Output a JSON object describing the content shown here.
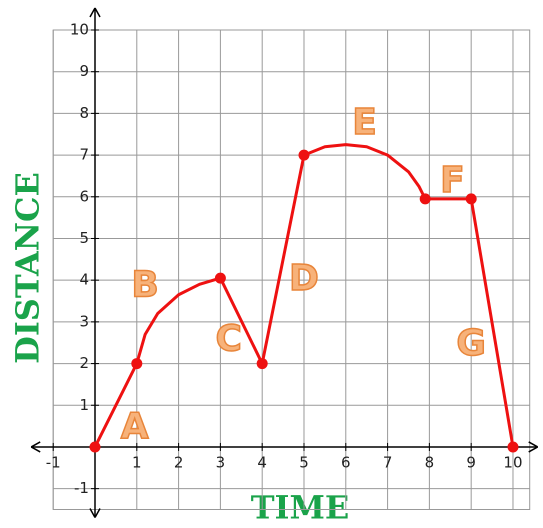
{
  "chart_data": {
    "type": "line",
    "x_label": "TIME",
    "y_label": "DISTANCE",
    "xlim": [
      -1,
      10.4
    ],
    "ylim": [
      -1.5,
      10
    ],
    "xticks": [
      -1,
      1,
      2,
      3,
      4,
      5,
      6,
      7,
      8,
      9,
      10
    ],
    "yticks": [
      -1,
      1,
      2,
      3,
      4,
      5,
      6,
      7,
      8,
      9,
      10
    ],
    "grid": true,
    "x": [
      0,
      1,
      1.2,
      1.5,
      2,
      2.5,
      3,
      4,
      5,
      5.5,
      6,
      6.5,
      7,
      7.5,
      7.75,
      7.9,
      9,
      10
    ],
    "series": [
      {
        "color": "#ee1111",
        "values": [
          0,
          2,
          2.7,
          3.2,
          3.65,
          3.9,
          4.05,
          2,
          7,
          7.2,
          7.25,
          7.2,
          7.0,
          6.6,
          6.25,
          5.95,
          5.95,
          0
        ]
      }
    ],
    "points": {
      "color": "#ee1111",
      "x": [
        0,
        1,
        3,
        4,
        5,
        7.9,
        9,
        10
      ],
      "y": [
        0,
        2,
        4.05,
        2,
        7,
        5.95,
        5.95,
        0
      ]
    },
    "annotations": [
      {
        "text": "A",
        "x": 0.95,
        "y": 0.45
      },
      {
        "text": "B",
        "x": 1.2,
        "y": 3.85
      },
      {
        "text": "C",
        "x": 3.2,
        "y": 2.55
      },
      {
        "text": "D",
        "x": 5,
        "y": 4
      },
      {
        "text": "E",
        "x": 6.45,
        "y": 7.75
      },
      {
        "text": "F",
        "x": 8.55,
        "y": 6.35
      },
      {
        "text": "G",
        "x": 9,
        "y": 2.45
      }
    ]
  }
}
